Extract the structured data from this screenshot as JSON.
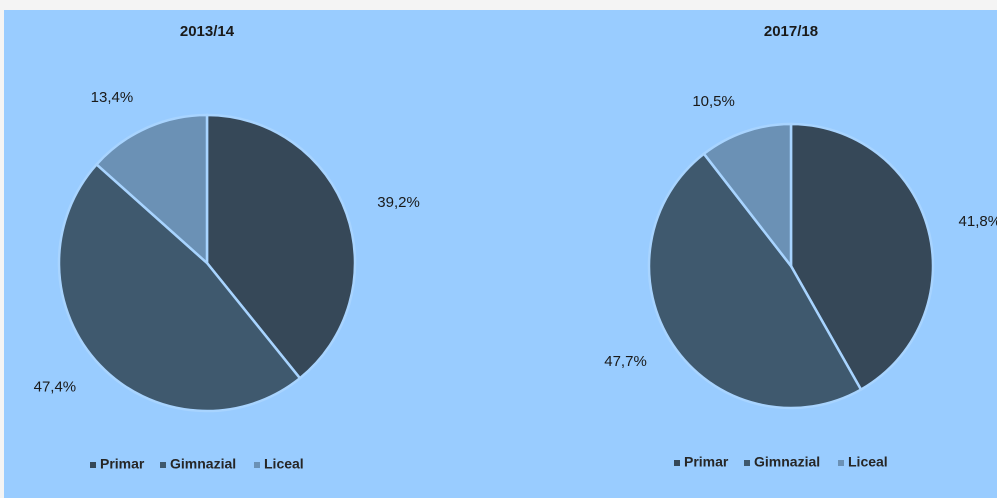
{
  "chart_data": [
    {
      "type": "pie",
      "title": "2013/14",
      "categories": [
        "Primar",
        "Gimnazial",
        "Liceal"
      ],
      "values": [
        39.2,
        47.4,
        13.4
      ],
      "value_labels": [
        "39,2%",
        "47,4%",
        "13,4%"
      ],
      "colors": [
        "#364858",
        "#3f596e",
        "#6b91b5"
      ]
    },
    {
      "type": "pie",
      "title": "2017/18",
      "categories": [
        "Primar",
        "Gimnazial",
        "Liceal"
      ],
      "values": [
        41.8,
        47.7,
        10.5
      ],
      "value_labels": [
        "41,8%",
        "47,7%",
        "10,5%"
      ],
      "colors": [
        "#364858",
        "#3f596e",
        "#6b91b5"
      ]
    }
  ]
}
